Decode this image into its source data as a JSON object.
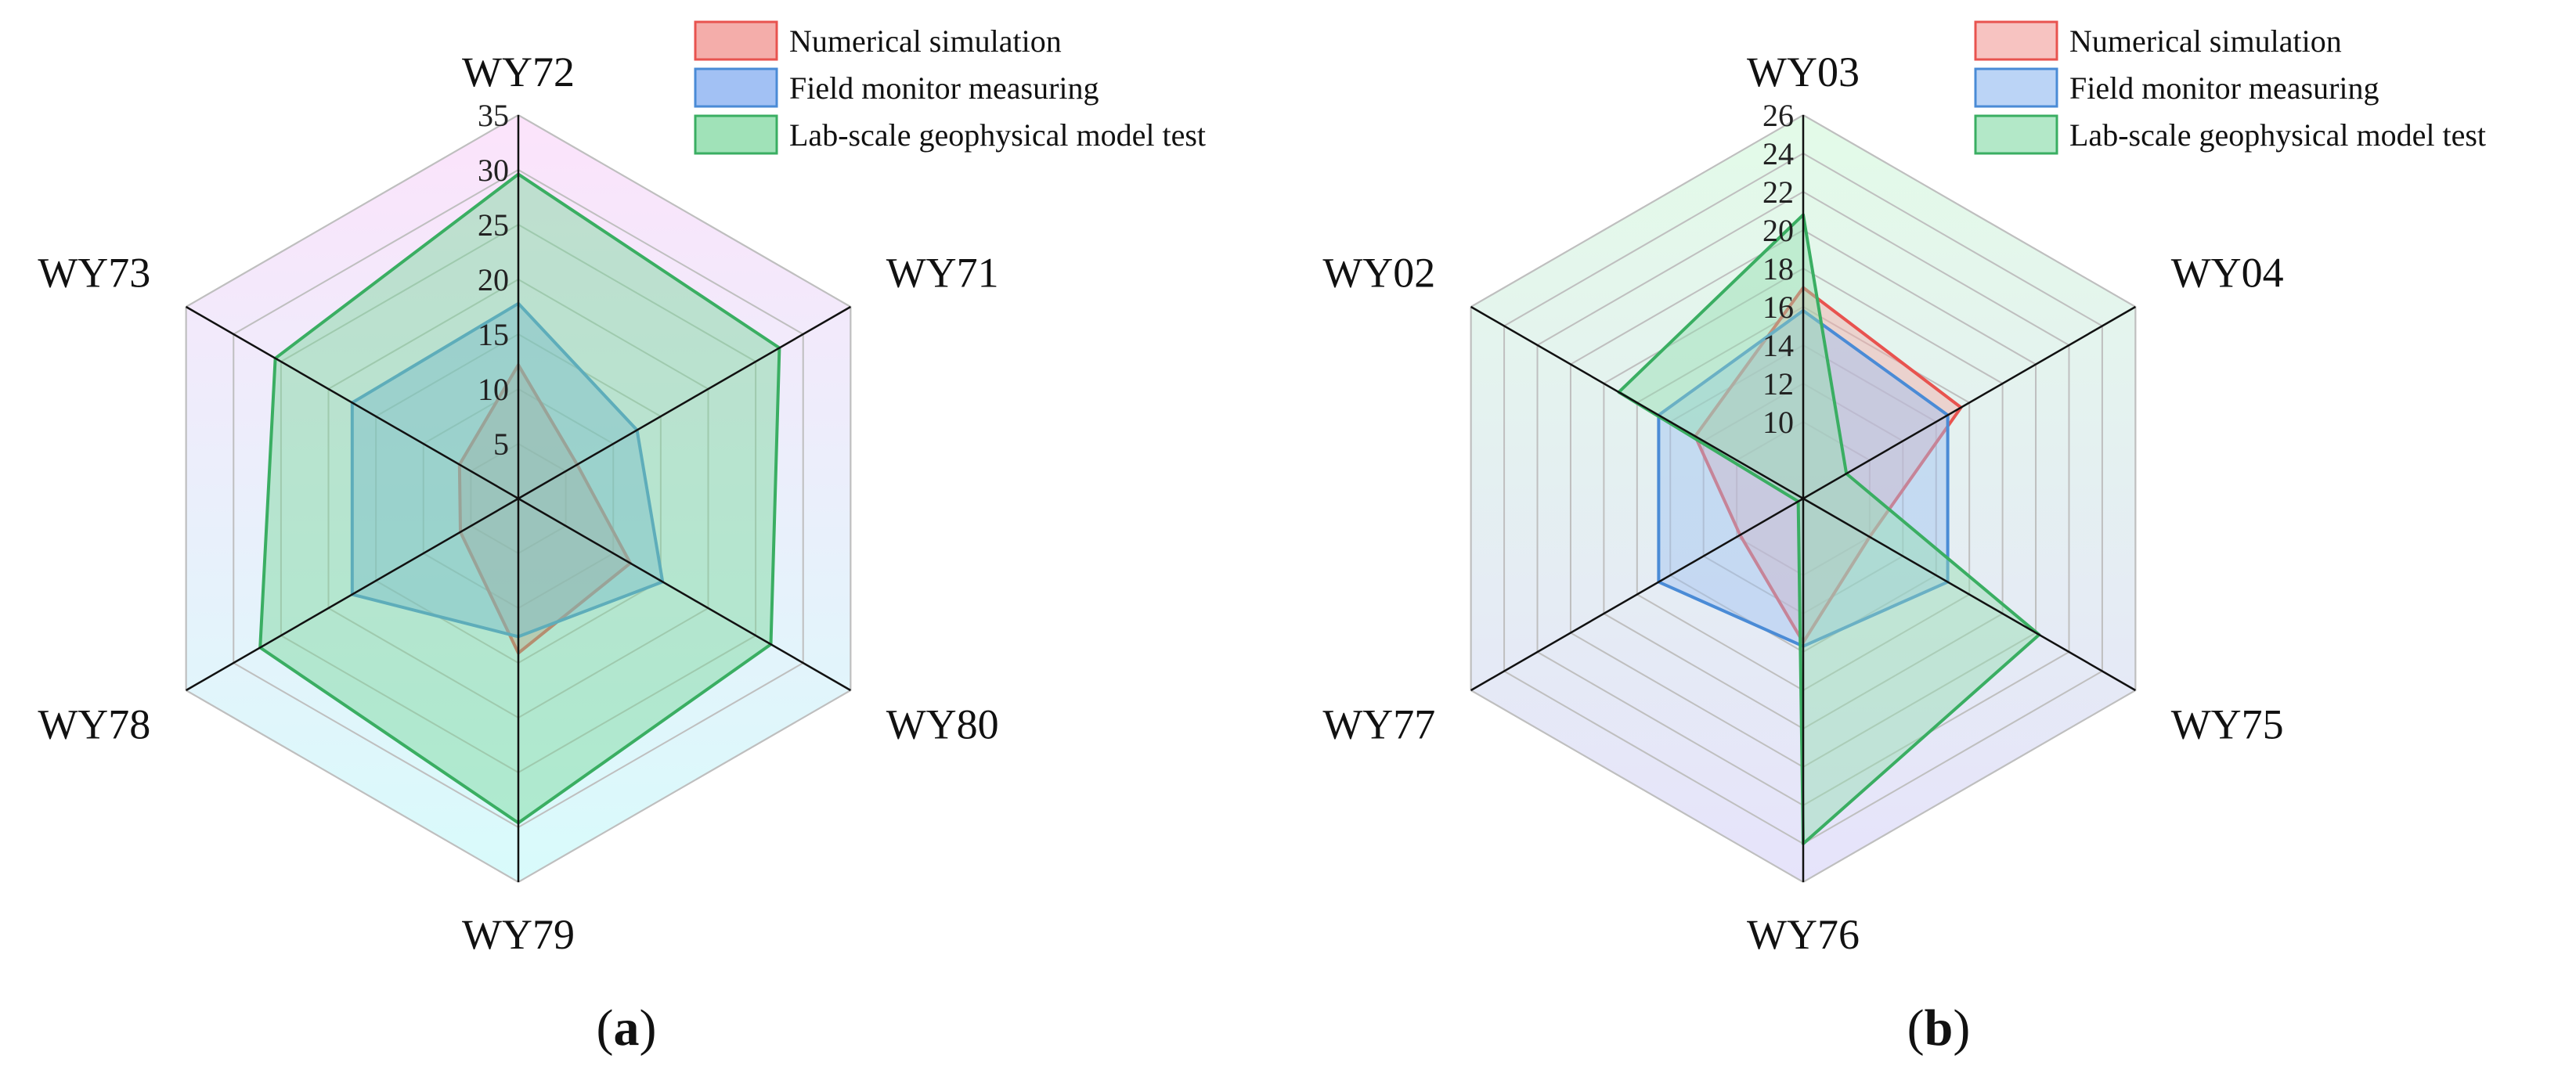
{
  "chart_data": [
    {
      "type": "radar",
      "panel_label": "a",
      "axes": [
        "WY72",
        "WY71",
        "WY80",
        "WY79",
        "WY78",
        "WY73"
      ],
      "r_ticks": [
        5,
        10,
        15,
        20,
        25,
        30,
        35
      ],
      "r_range": [
        0,
        35
      ],
      "grid": true,
      "legend_position": "top-right",
      "band_gradient": [
        "#fce3fb",
        "#d8fbfb"
      ],
      "series": [
        {
          "name": "Numerical simulation",
          "color": "#e8534f",
          "fill": "#f08a86",
          "values": [
            12.2,
            6.2,
            11.8,
            14.1,
            6.1,
            6.2
          ]
        },
        {
          "name": "Field monitor measuring",
          "color": "#4a8bd6",
          "fill": "#7aa6ef",
          "values": [
            17.8,
            12.5,
            15.2,
            12.6,
            17.5,
            17.5
          ]
        },
        {
          "name": "Lab-scale geophysical model test",
          "color": "#3aae62",
          "fill": "#78d69a",
          "values": [
            29.6,
            27.5,
            26.6,
            29.6,
            27.2,
            25.6
          ]
        }
      ]
    },
    {
      "type": "radar",
      "panel_label": "b",
      "axes": [
        "WY03",
        "WY04",
        "WY75",
        "WY76",
        "WY77",
        "WY02"
      ],
      "r_ticks": [
        10,
        12,
        14,
        16,
        18,
        20,
        22,
        24,
        26
      ],
      "r_range": [
        6,
        26
      ],
      "grid": true,
      "legend_position": "top-right",
      "band_gradient": [
        "#e3fbe8",
        "#e6e3fb"
      ],
      "series": [
        {
          "name": "Numerical simulation",
          "color": "#e8534f",
          "fill": "#f4aaa6",
          "values": [
            17.0,
            15.5,
            10.0,
            13.5,
            9.8,
            12.5
          ]
        },
        {
          "name": "Field monitor measuring",
          "color": "#4a8bd6",
          "fill": "#9ec2f2",
          "values": [
            15.8,
            14.7,
            14.7,
            13.7,
            14.7,
            14.7
          ]
        },
        {
          "name": "Lab-scale geophysical model test",
          "color": "#3aae62",
          "fill": "#93deb0",
          "values": [
            20.8,
            8.6,
            20.2,
            24.0,
            6.3,
            17.1
          ]
        }
      ]
    }
  ]
}
